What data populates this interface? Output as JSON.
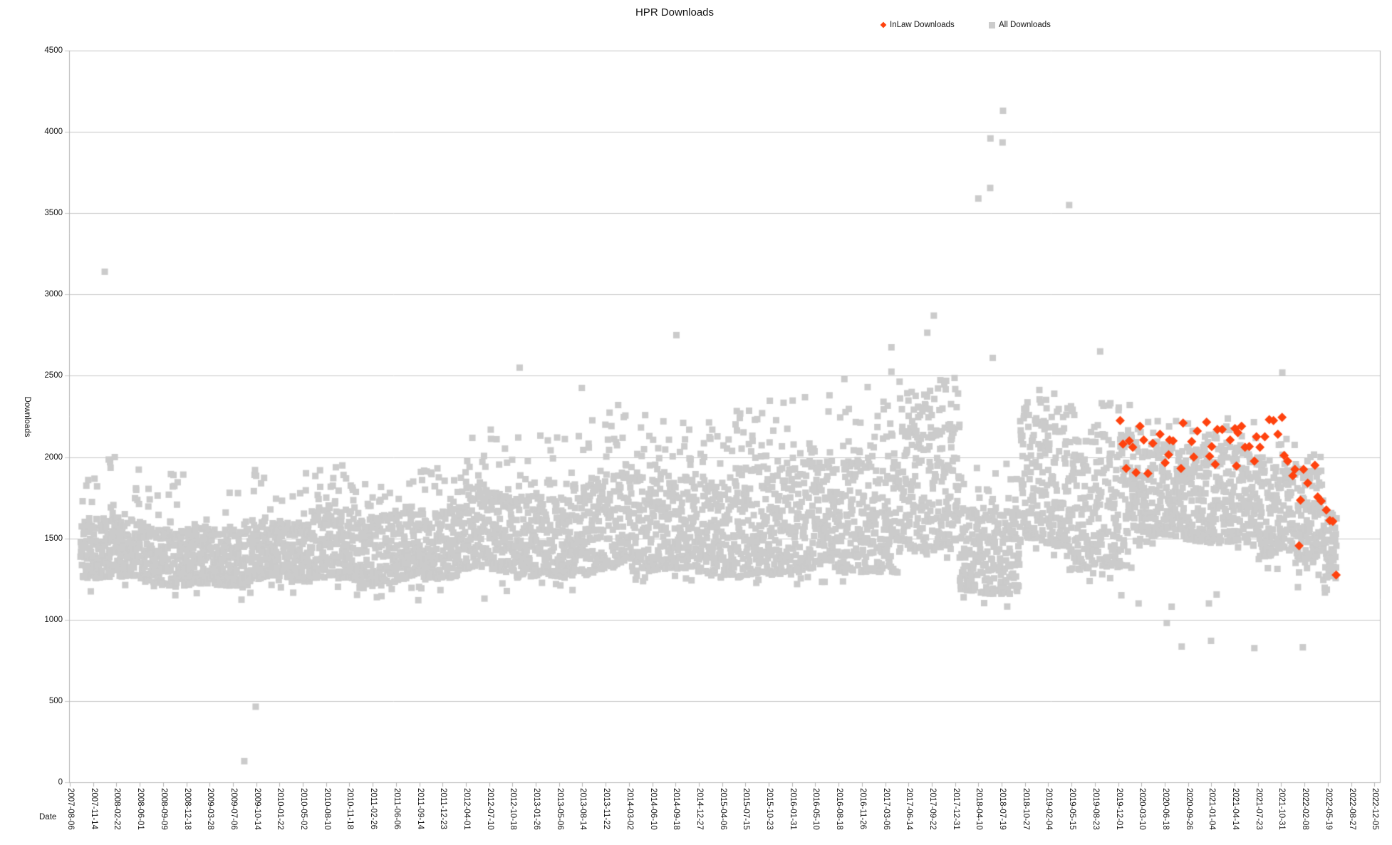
{
  "title": "HPR Downloads",
  "legend": [
    {
      "label": "InLaw Downloads",
      "marker": "diamond",
      "color": "#ff420e"
    },
    {
      "label": "All Downloads",
      "marker": "square",
      "color": "#cccccc"
    }
  ],
  "colors": {
    "background": "#ffffff",
    "grid": "#c6c6c6",
    "axis": "#b3b3b3",
    "text": "#141414",
    "series_inlaw": "#ff420e",
    "series_all": "#cbcbcb"
  },
  "chart_data": {
    "type": "scatter",
    "title": "HPR Downloads",
    "xlabel": "Date",
    "ylabel": "Downloads",
    "ylim": [
      0,
      4500
    ],
    "y_tick_step": 500,
    "y_tick_labels": [
      "0",
      "500",
      "1000",
      "1500",
      "2000",
      "2500",
      "3000",
      "3500",
      "4000",
      "4500"
    ],
    "xlim": [
      "2007-08-06",
      "2022-12-26"
    ],
    "x_tick_interval_days": 100,
    "x_tick_labels": [
      "2007-08-06",
      "2007-11-14",
      "2008-02-22",
      "2008-06-01",
      "2008-09-09",
      "2008-12-18",
      "2009-03-28",
      "2009-07-06",
      "2009-10-14",
      "2010-01-22",
      "2010-05-02",
      "2010-08-10",
      "2010-11-18",
      "2011-02-26",
      "2011-06-06",
      "2011-09-14",
      "2011-12-23",
      "2012-04-01",
      "2012-07-10",
      "2012-10-18",
      "2013-01-26",
      "2013-05-06",
      "2013-08-14",
      "2013-11-22",
      "2014-03-02",
      "2014-06-10",
      "2014-09-18",
      "2014-12-27",
      "2015-04-06",
      "2015-07-15",
      "2015-10-23",
      "2016-01-31",
      "2016-05-10",
      "2016-08-18",
      "2016-11-26",
      "2017-03-06",
      "2017-06-14",
      "2017-09-22",
      "2017-12-31",
      "2018-04-10",
      "2018-07-19",
      "2018-10-27",
      "2019-02-04",
      "2019-05-15",
      "2019-08-23",
      "2019-12-01",
      "2020-03-10",
      "2020-06-18",
      "2020-09-26",
      "2021-01-04",
      "2021-04-14",
      "2021-07-23",
      "2021-10-31",
      "2022-02-08",
      "2022-05-19",
      "2022-08-27",
      "2022-12-05"
    ],
    "grid": "horizontal",
    "legend_position": "top",
    "series": [
      {
        "name": "InLaw Downloads",
        "marker": "diamond",
        "color": "#ff420e",
        "points": [
          [
            "2019-12-10",
            2225
          ],
          [
            "2019-12-22",
            2080
          ],
          [
            "2020-01-05",
            1930
          ],
          [
            "2020-01-18",
            2100
          ],
          [
            "2020-02-02",
            2060
          ],
          [
            "2020-02-16",
            1905
          ],
          [
            "2020-03-04",
            2190
          ],
          [
            "2020-03-20",
            2105
          ],
          [
            "2020-04-07",
            1900
          ],
          [
            "2020-04-28",
            2085
          ],
          [
            "2020-05-29",
            2140
          ],
          [
            "2020-06-20",
            1965
          ],
          [
            "2020-07-05",
            2015
          ],
          [
            "2020-07-09",
            2105
          ],
          [
            "2020-07-24",
            2100
          ],
          [
            "2020-08-27",
            1930
          ],
          [
            "2020-09-05",
            2210
          ],
          [
            "2020-10-12",
            2095
          ],
          [
            "2020-10-21",
            2000
          ],
          [
            "2020-11-05",
            2160
          ],
          [
            "2020-12-15",
            2215
          ],
          [
            "2020-12-28",
            2005
          ],
          [
            "2021-01-06",
            2065
          ],
          [
            "2021-01-21",
            1955
          ],
          [
            "2021-01-30",
            2170
          ],
          [
            "2021-02-20",
            2170
          ],
          [
            "2021-03-26",
            2105
          ],
          [
            "2021-04-16",
            2175
          ],
          [
            "2021-04-22",
            1945
          ],
          [
            "2021-04-28",
            2150
          ],
          [
            "2021-05-14",
            2190
          ],
          [
            "2021-05-29",
            2060
          ],
          [
            "2021-06-16",
            2065
          ],
          [
            "2021-07-08",
            1975
          ],
          [
            "2021-07-17",
            2125
          ],
          [
            "2021-08-01",
            2060
          ],
          [
            "2021-08-22",
            2125
          ],
          [
            "2021-09-10",
            2230
          ],
          [
            "2021-09-28",
            2225
          ],
          [
            "2021-10-17",
            2140
          ],
          [
            "2021-11-04",
            2245
          ],
          [
            "2021-11-13",
            2010
          ],
          [
            "2021-11-28",
            1975
          ],
          [
            "2021-12-20",
            1885
          ],
          [
            "2021-12-29",
            1925
          ],
          [
            "2022-01-16",
            1455
          ],
          [
            "2022-01-22",
            1735
          ],
          [
            "2022-02-04",
            1925
          ],
          [
            "2022-02-22",
            1840
          ],
          [
            "2022-03-25",
            1950
          ],
          [
            "2022-04-06",
            1755
          ],
          [
            "2022-04-21",
            1730
          ],
          [
            "2022-05-13",
            1675
          ],
          [
            "2022-05-28",
            1610
          ],
          [
            "2022-06-10",
            1605
          ],
          [
            "2022-06-24",
            1275
          ]
        ]
      },
      {
        "name": "All Downloads",
        "marker": "square",
        "color": "#cbcbcb",
        "representation": "daily values; dense cloud approximated by band segments read from the plot",
        "outliers": [
          [
            "2007-12-01",
            1820
          ],
          [
            "2008-01-03",
            3140
          ],
          [
            "2008-01-20",
            1985
          ],
          [
            "2008-02-15",
            2000
          ],
          [
            "2009-08-24",
            130
          ],
          [
            "2009-10-12",
            465
          ],
          [
            "2011-09-10",
            1120
          ],
          [
            "2012-06-20",
            1130
          ],
          [
            "2012-11-18",
            2550
          ],
          [
            "2013-08-12",
            2425
          ],
          [
            "2014-01-15",
            2320
          ],
          [
            "2014-09-22",
            2750
          ],
          [
            "2016-09-12",
            2480
          ],
          [
            "2017-04-02",
            2675
          ],
          [
            "2017-04-02",
            2525
          ],
          [
            "2017-09-03",
            2765
          ],
          [
            "2017-10-01",
            2870
          ],
          [
            "2018-04-10",
            3590
          ],
          [
            "2018-05-31",
            3655
          ],
          [
            "2018-06-01",
            3960
          ],
          [
            "2018-06-11",
            2610
          ],
          [
            "2018-07-23",
            3935
          ],
          [
            "2018-07-25",
            4130
          ],
          [
            "2019-03-02",
            2390
          ],
          [
            "2019-05-05",
            3550
          ],
          [
            "2019-09-15",
            2650
          ],
          [
            "2019-12-15",
            1150
          ],
          [
            "2020-02-27",
            1100
          ],
          [
            "2020-06-27",
            980
          ],
          [
            "2020-07-18",
            1080
          ],
          [
            "2020-08-30",
            835
          ],
          [
            "2020-12-25",
            1100
          ],
          [
            "2021-01-03",
            870
          ],
          [
            "2021-01-27",
            1155
          ],
          [
            "2021-07-08",
            825
          ],
          [
            "2021-11-05",
            2520
          ],
          [
            "2022-01-11",
            1200
          ],
          [
            "2022-02-01",
            830
          ]
        ],
        "band_segments": [
          {
            "from": "2007-09-21",
            "to": "2008-03-03",
            "low": 1250,
            "high": 1620,
            "tail_high": 2050,
            "tail_frac": 0.1,
            "points_per_day": 1
          },
          {
            "from": "2008-03-03",
            "to": "2010-06-01",
            "low": 1230,
            "high": 1580,
            "tail_high": 1950,
            "tail_frac": 0.08,
            "points_per_day": 1
          },
          {
            "from": "2010-06-01",
            "to": "2012-04-01",
            "low": 1250,
            "high": 1680,
            "tail_high": 1950,
            "tail_frac": 0.1,
            "points_per_day": 1
          },
          {
            "from": "2012-04-01",
            "to": "2013-06-05",
            "low": 1280,
            "high": 1780,
            "tail_high": 2150,
            "tail_frac": 0.12,
            "points_per_day": 1
          },
          {
            "from": "2013-06-05",
            "to": "2015-06-05",
            "low": 1300,
            "high": 1870,
            "tail_high": 2260,
            "tail_frac": 0.12,
            "points_per_day": 1
          },
          {
            "from": "2015-06-05",
            "to": "2016-10-07",
            "low": 1280,
            "high": 1950,
            "tail_high": 2350,
            "tail_frac": 0.13,
            "points_per_day": 1
          },
          {
            "from": "2016-10-07",
            "to": "2017-05-06",
            "low": 1300,
            "high": 2000,
            "tail_high": 2460,
            "tail_frac": 0.14,
            "points_per_day": 1
          },
          {
            "from": "2017-05-06",
            "to": "2018-01-20",
            "low": 1450,
            "high": 2180,
            "tail_high": 2500,
            "tail_frac": 0.22,
            "points_per_day": 1
          },
          {
            "from": "2018-01-20",
            "to": "2018-10-07",
            "low": 1150,
            "high": 1660,
            "tail_high": 1950,
            "tail_frac": 0.08,
            "points_per_day": 1
          },
          {
            "from": "2018-10-07",
            "to": "2019-05-05",
            "low": 1480,
            "high": 2220,
            "tail_high": 2420,
            "tail_frac": 0.14,
            "points_per_day": 1
          },
          {
            "from": "2019-05-05",
            "to": "2020-01-30",
            "low": 1330,
            "high": 2150,
            "tail_high": 2350,
            "tail_frac": 0.1,
            "points_per_day": 1
          },
          {
            "from": "2020-01-30",
            "to": "2021-08-13",
            "low": 1480,
            "high": 2060,
            "tail_high": 2250,
            "tail_frac": 0.09,
            "points_per_day": 1
          },
          {
            "from": "2021-08-13",
            "to": "2021-12-31",
            "low": 1430,
            "high": 2000,
            "tail_high": 2150,
            "tail_frac": 0.07,
            "points_per_day": 1
          },
          {
            "from": "2021-12-31",
            "to": "2022-04-30",
            "low": 1330,
            "high": 1900,
            "tail_high": 2000,
            "tail_frac": 0.05,
            "points_per_day": 1
          },
          {
            "from": "2022-04-30",
            "to": "2022-06-27",
            "low": 1230,
            "high": 1650,
            "tail_high": 1800,
            "tail_frac": 0.04,
            "points_per_day": 1
          }
        ]
      }
    ]
  }
}
